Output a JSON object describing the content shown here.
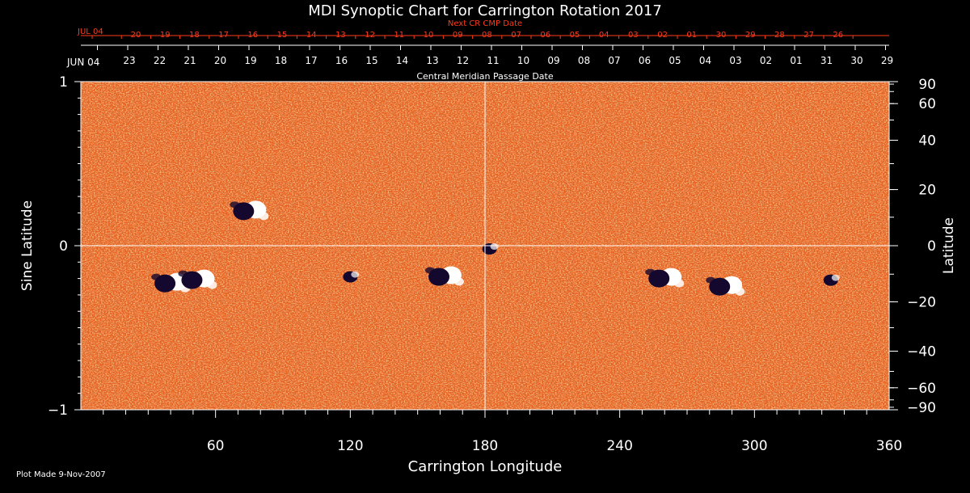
{
  "chart_data": {
    "type": "heatmap",
    "title": "MDI Synoptic Chart for Carrington Rotation 2017",
    "xlabel": "Carrington Longitude",
    "ylabel": "Sine Latitude",
    "ylabel_right": "Latitude",
    "top_axis_label": "Central Meridian Passage Date",
    "next_axis_label": "Next CR CMP Date",
    "xlim": [
      0,
      360
    ],
    "ylim": [
      -1,
      1
    ],
    "x_ticks": [
      60,
      120,
      180,
      240,
      300,
      360
    ],
    "y_ticks": [
      {
        "value": 1,
        "label": "1"
      },
      {
        "value": 0,
        "label": "0"
      },
      {
        "value": -1,
        "label": "−1"
      }
    ],
    "right_lat_ticks": [
      90,
      60,
      40,
      20,
      0,
      -20,
      -40,
      -60,
      -90
    ],
    "right_lat_labels": [
      "90",
      "60",
      "40",
      "20",
      "0",
      "−20",
      "−40",
      "−60",
      "−90"
    ],
    "cmp_start_label": "JUN 04",
    "cmp_dates": [
      "23",
      "22",
      "21",
      "20",
      "19",
      "18",
      "17",
      "16",
      "15",
      "14",
      "13",
      "12",
      "11",
      "10",
      "09",
      "08",
      "07",
      "06",
      "05",
      "04",
      "03",
      "02",
      "01",
      "31",
      "30",
      "29"
    ],
    "next_start_label": "JUL 04",
    "next_dates": [
      "20",
      "19",
      "18",
      "17",
      "16",
      "15",
      "14",
      "13",
      "12",
      "11",
      "10",
      "09",
      "08",
      "07",
      "06",
      "05",
      "04",
      "03",
      "02",
      "01",
      "30",
      "29",
      "28",
      "27",
      "26"
    ],
    "features": [
      {
        "name": "active-region",
        "lon": 40,
        "sinlat": -0.22,
        "polarity": "mixed"
      },
      {
        "name": "active-region",
        "lon": 52,
        "sinlat": -0.2,
        "polarity": "mixed"
      },
      {
        "name": "active-region",
        "lon": 75,
        "sinlat": 0.22,
        "polarity": "mixed"
      },
      {
        "name": "active-region",
        "lon": 120,
        "sinlat": -0.19,
        "polarity": "negative"
      },
      {
        "name": "active-region",
        "lon": 162,
        "sinlat": -0.18,
        "polarity": "mixed"
      },
      {
        "name": "active-region",
        "lon": 182,
        "sinlat": -0.02,
        "polarity": "negative"
      },
      {
        "name": "active-region",
        "lon": 260,
        "sinlat": -0.19,
        "polarity": "mixed"
      },
      {
        "name": "active-region",
        "lon": 287,
        "sinlat": -0.24,
        "polarity": "mixed"
      },
      {
        "name": "active-region",
        "lon": 334,
        "sinlat": -0.21,
        "polarity": "negative"
      }
    ],
    "colors": {
      "background": "#000000",
      "map_base": "#e8621a",
      "positive": "#ffffff",
      "negative": "#14082e",
      "axis": "#ffffff",
      "next_axis": "#ff3a1a"
    }
  },
  "footer": {
    "plot_made": "Plot Made  9-Nov-2007"
  }
}
